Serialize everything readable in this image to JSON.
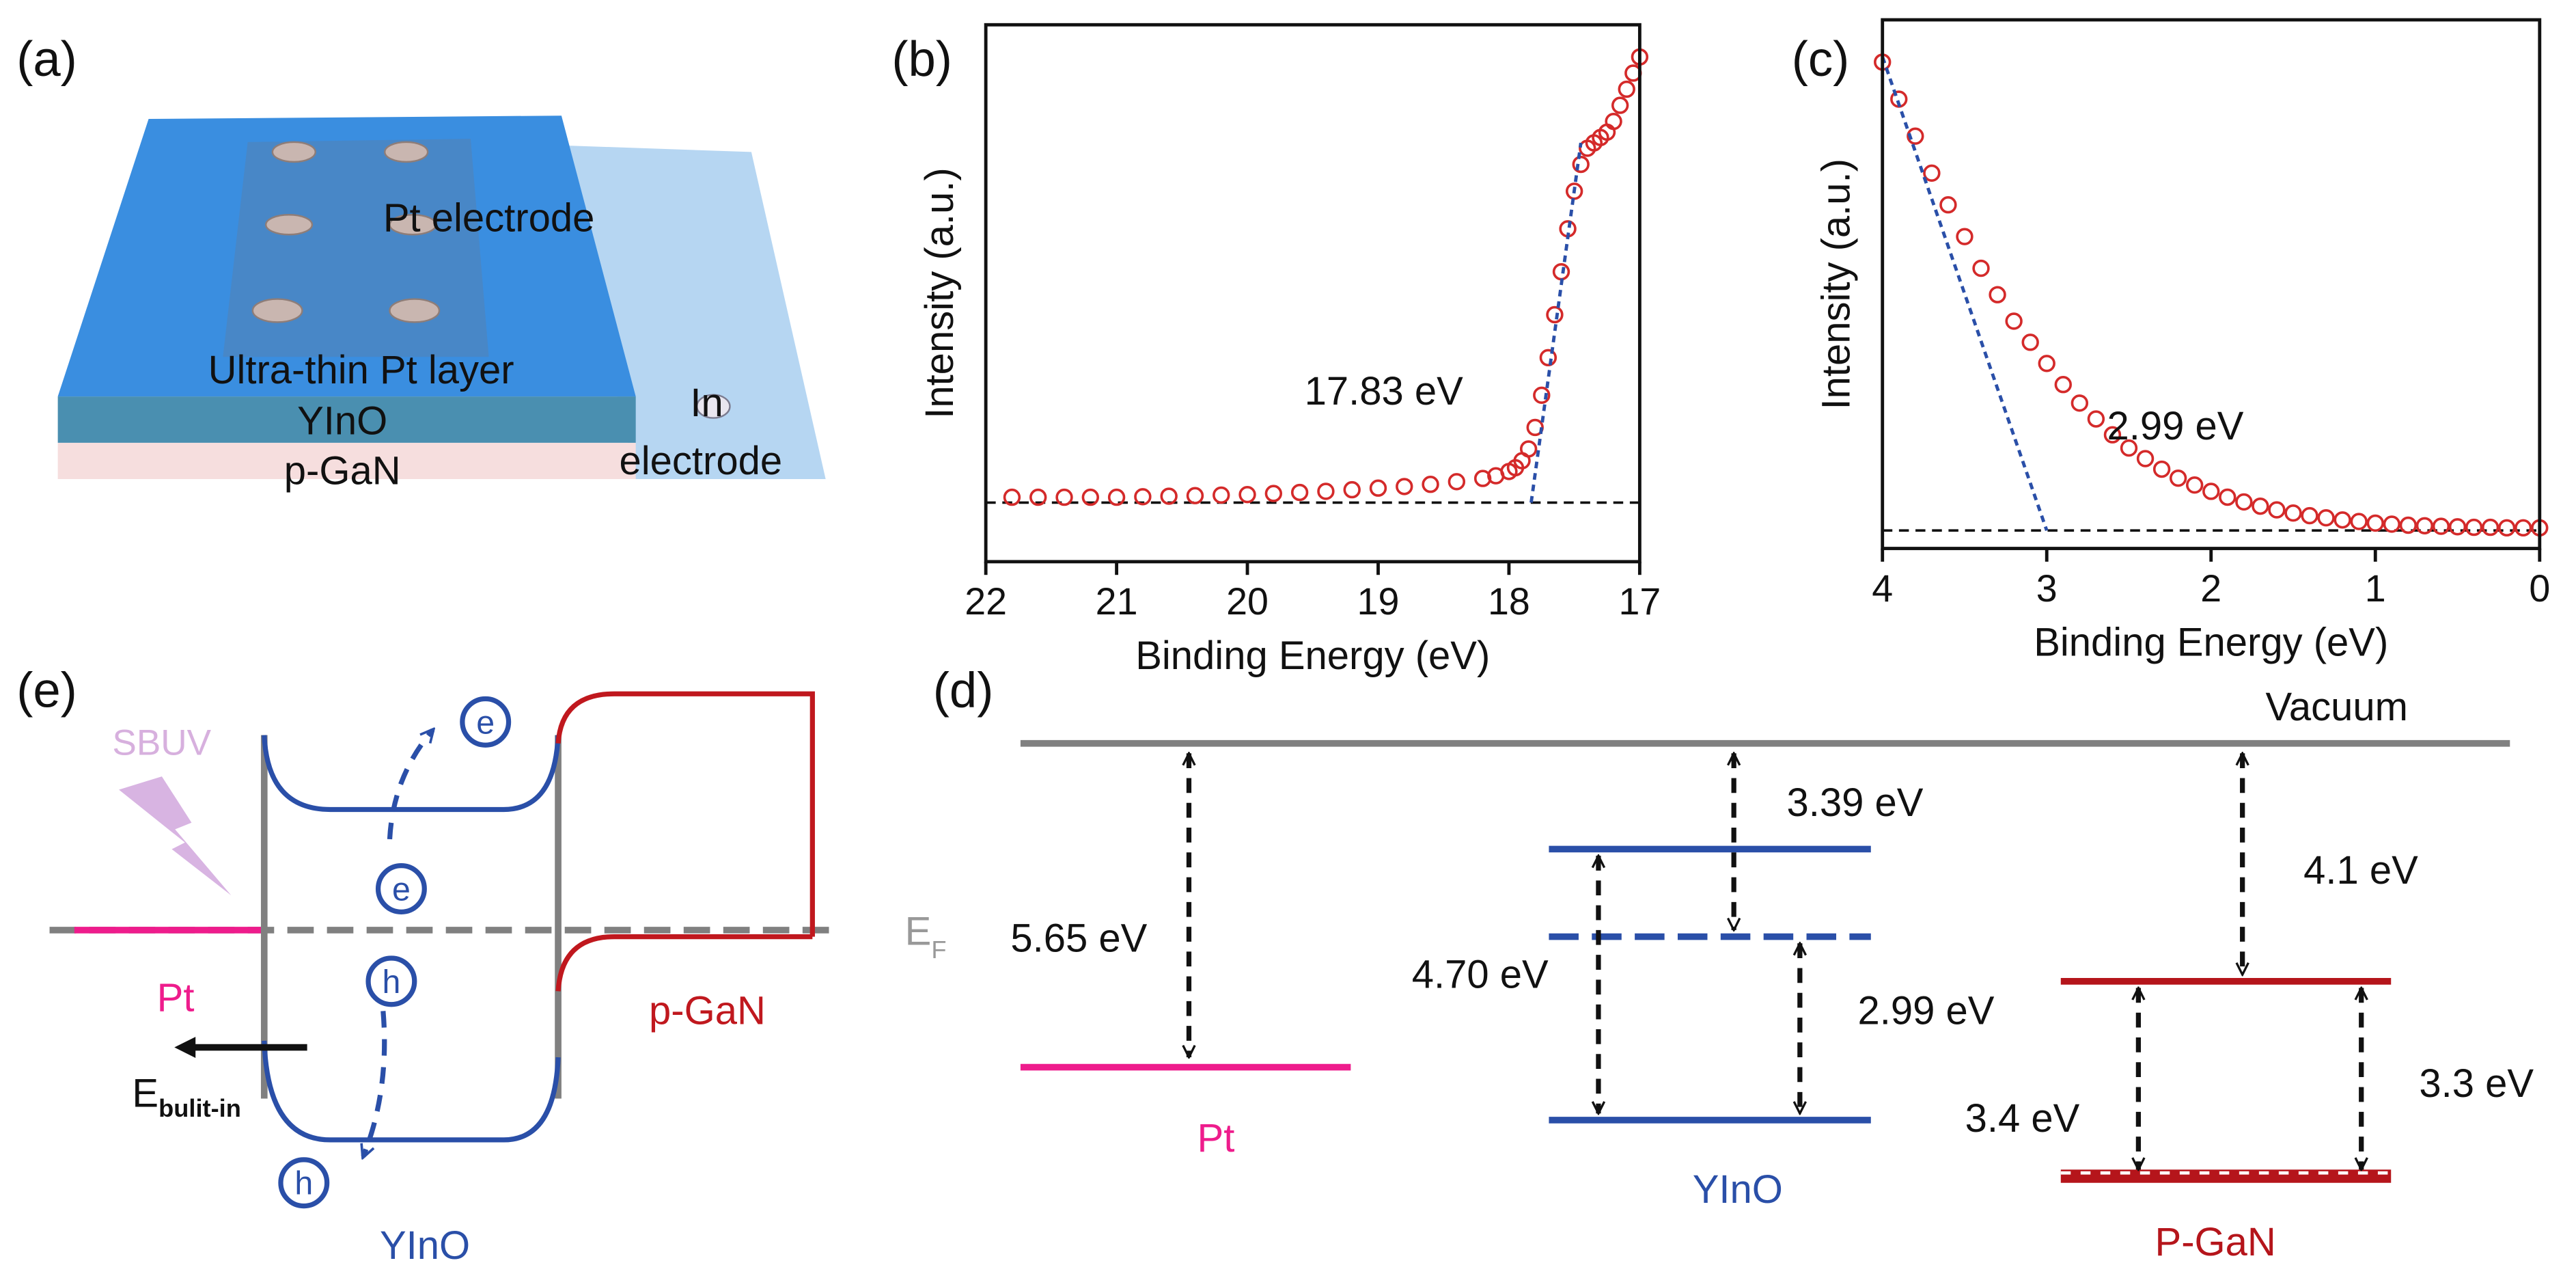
{
  "panel_a": {
    "label": "(a)",
    "pt_electrode": "Pt electrode",
    "pt_layer": "Ultra-thin Pt layer",
    "yino": "YInO",
    "pgan": "p-GaN",
    "in_electrode": [
      "In",
      "electrode"
    ]
  },
  "chart_data": [
    {
      "type": "scatter",
      "panel_label": "(b)",
      "xlabel": "Binding Energy (eV)",
      "ylabel": "Intensity (a.u.)",
      "annotation": "17.83 eV",
      "xlim": [
        22,
        17
      ],
      "ylim": [
        0,
        100
      ],
      "xticks": [
        22,
        21,
        20,
        19,
        18,
        17
      ],
      "series": [
        {
          "color": "#d42a2a",
          "x": [
            21.8,
            21.6,
            21.4,
            21.2,
            21.0,
            20.8,
            20.6,
            20.4,
            20.2,
            20.0,
            19.8,
            19.6,
            19.4,
            19.2,
            19.0,
            18.8,
            18.6,
            18.4,
            18.2,
            18.1,
            18.0,
            17.95,
            17.9,
            17.85,
            17.8,
            17.75,
            17.7,
            17.65,
            17.6,
            17.55,
            17.5,
            17.45,
            17.4,
            17.35,
            17.3,
            17.25,
            17.2,
            17.15,
            17.1,
            17.05,
            17.0
          ],
          "values": [
            12,
            12,
            12,
            12,
            12,
            12.1,
            12.2,
            12.3,
            12.4,
            12.5,
            12.7,
            12.9,
            13.1,
            13.4,
            13.7,
            14,
            14.4,
            14.9,
            15.5,
            16,
            16.8,
            17.5,
            18.8,
            21,
            25,
            31,
            38,
            46,
            54,
            62,
            69,
            74,
            77,
            78,
            79,
            80,
            82,
            85,
            88,
            91,
            94
          ]
        }
      ],
      "fit_line": {
        "color": "#2a4fa8",
        "x": [
          17.83,
          17.45
        ],
        "values": [
          11,
          78
        ]
      },
      "baseline": 11
    },
    {
      "type": "scatter",
      "panel_label": "(c)",
      "xlabel": "Binding Energy (eV)",
      "ylabel": "Intensity (a.u.)",
      "annotation": "2.99 eV",
      "xlim": [
        4,
        0
      ],
      "ylim": [
        0,
        100
      ],
      "xticks": [
        4,
        3,
        2,
        1,
        0
      ],
      "series": [
        {
          "color": "#d42a2a",
          "x": [
            4,
            3.9,
            3.8,
            3.7,
            3.6,
            3.5,
            3.4,
            3.3,
            3.2,
            3.1,
            3,
            2.9,
            2.8,
            2.7,
            2.6,
            2.5,
            2.4,
            2.3,
            2.2,
            2.1,
            2,
            1.9,
            1.8,
            1.7,
            1.6,
            1.5,
            1.4,
            1.3,
            1.2,
            1.1,
            1,
            0.9,
            0.8,
            0.7,
            0.6,
            0.5,
            0.4,
            0.3,
            0.2,
            0.1,
            0
          ],
          "values": [
            92,
            85,
            78,
            71,
            65,
            59,
            53,
            48,
            43,
            39,
            35,
            31,
            27.5,
            24.5,
            21.5,
            19,
            17,
            15,
            13.3,
            12,
            10.8,
            9.7,
            8.8,
            8,
            7.3,
            6.7,
            6.2,
            5.8,
            5.4,
            5.1,
            4.8,
            4.6,
            4.4,
            4.3,
            4.2,
            4.1,
            4,
            4,
            3.9,
            3.9,
            3.9
          ]
        }
      ],
      "fit_line": {
        "color": "#2a4fa8",
        "x": [
          4,
          3
        ],
        "values": [
          93,
          3.4
        ]
      },
      "baseline": 3.4
    }
  ],
  "panel_d": {
    "label": "(d)",
    "vacuum": "Vacuum",
    "ef": {
      "main": "E",
      "sub": "F"
    },
    "pt_gap": "5.65 eV",
    "yino_top": "3.39 eV",
    "yino_left": "4.70 eV",
    "yino_right": "2.99 eV",
    "pgan_top": "4.1 eV",
    "pgan_left": "3.4 eV",
    "pgan_right": "3.3 eV",
    "pt": "Pt",
    "yino": "YInO",
    "pgan": "P-GaN"
  },
  "panel_e": {
    "label": "(e)",
    "sbuv": "SBUV",
    "pt": "Pt",
    "pgan": "p-GaN",
    "field": {
      "main": "E",
      "sub": "bulit-in"
    },
    "yino": "YInO",
    "electron": "e",
    "hole": "h"
  }
}
